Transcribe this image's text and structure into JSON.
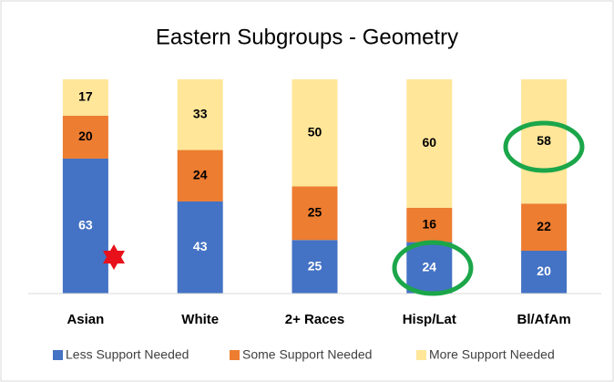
{
  "chart_data": {
    "type": "stacked_bar",
    "title": "Eastern Subgroups - Geometry",
    "categories": [
      "Asian",
      "White",
      "2+ Races",
      "Hisp/Lat",
      "Bl/AfAm"
    ],
    "series": [
      {
        "name": "Less Support Needed",
        "color": "#4472c4",
        "values": [
          63,
          43,
          25,
          24,
          20
        ]
      },
      {
        "name": "Some Support Needed",
        "color": "#ed7d31",
        "values": [
          20,
          24,
          25,
          16,
          22
        ]
      },
      {
        "name": "More Support Needed",
        "color": "#ffe699",
        "values": [
          17,
          33,
          50,
          60,
          58
        ]
      }
    ],
    "legend": "bottom"
  }
}
